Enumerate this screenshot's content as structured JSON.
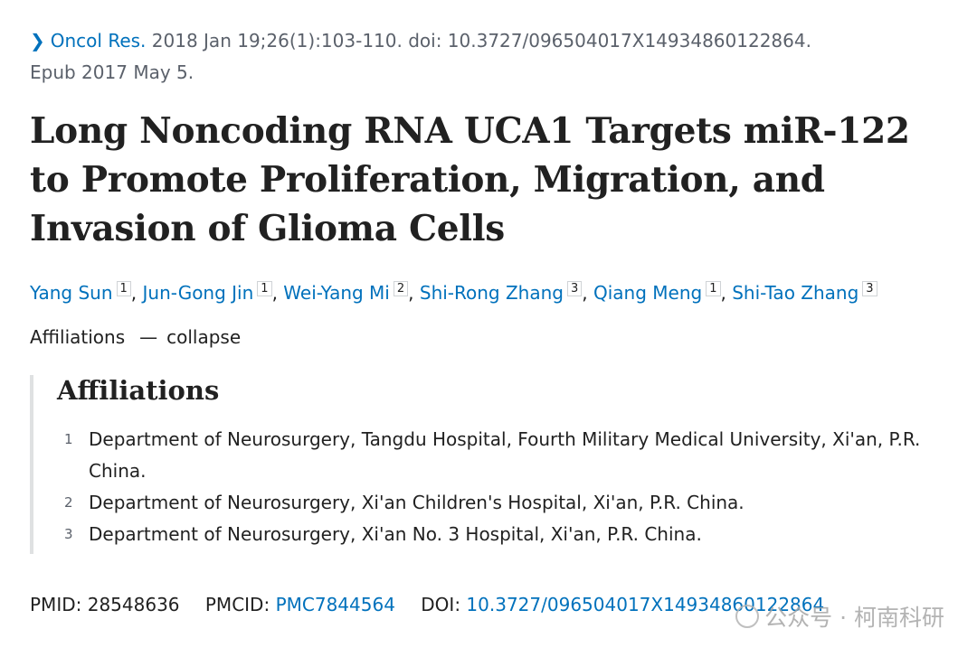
{
  "citation": {
    "journal": "Oncol Res.",
    "details": " 2018 Jan 19;26(1):103-110. doi: 10.3727/096504017X14934860122864.",
    "epub": "Epub 2017 May 5."
  },
  "title": "Long Noncoding RNA UCA1 Targets miR-122 to Promote Proliferation, Migration, and Invasion of Glioma Cells",
  "authors": [
    {
      "name": "Yang Sun",
      "aff": "1"
    },
    {
      "name": "Jun-Gong Jin",
      "aff": "1"
    },
    {
      "name": "Wei-Yang Mi",
      "aff": "2"
    },
    {
      "name": "Shi-Rong Zhang",
      "aff": "3"
    },
    {
      "name": "Qiang Meng",
      "aff": "1"
    },
    {
      "name": "Shi-Tao Zhang",
      "aff": "3"
    }
  ],
  "affiliations_toggle": {
    "label": "Affiliations",
    "action": "collapse"
  },
  "affiliations": {
    "heading": "Affiliations",
    "items": [
      {
        "num": "1",
        "text": "Department of Neurosurgery, Tangdu Hospital, Fourth Military Medical University, Xi'an, P.R. China."
      },
      {
        "num": "2",
        "text": "Department of Neurosurgery, Xi'an Children's Hospital, Xi'an, P.R. China."
      },
      {
        "num": "3",
        "text": "Department of Neurosurgery, Xi'an No. 3 Hospital, Xi'an, P.R. China."
      }
    ]
  },
  "identifiers": {
    "pmid_label": "PMID:",
    "pmid": "28548636",
    "pmcid_label": "PMCID:",
    "pmcid": "PMC7844564",
    "doi_label": "DOI:",
    "doi": "10.3727/096504017X14934860122864"
  },
  "watermark": "公众号 · 柯南科研",
  "colors": {
    "link": "#0071bc",
    "text": "#212121",
    "muted": "#5b616b",
    "border": "#dfe1e2"
  }
}
